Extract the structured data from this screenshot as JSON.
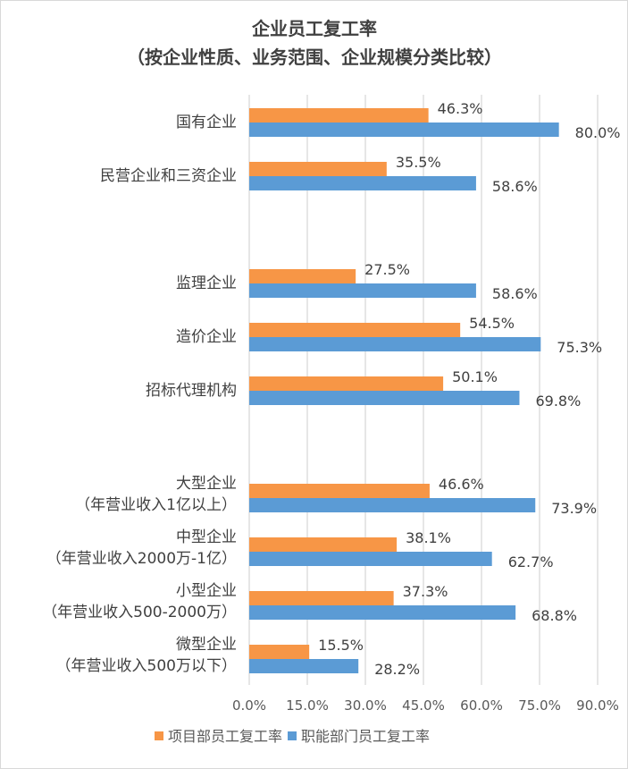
{
  "chart_data": {
    "type": "bar",
    "orientation": "horizontal",
    "title": [
      "企业员工复工率",
      "（按企业性质、业务范围、企业规模分类比较）"
    ],
    "categories": [
      [
        "国有企业"
      ],
      [
        "民营企业和三资企业"
      ],
      [],
      [
        "监理企业"
      ],
      [
        "造价企业"
      ],
      [
        "招标代理机构"
      ],
      [],
      [
        "大型企业",
        "（年营业收入1亿以上）"
      ],
      [
        "中型企业",
        "（年营业收入2000万-1亿）"
      ],
      [
        "小型企业",
        "（年营业收入500-2000万）"
      ],
      [
        "微型企业",
        "（年营业收入500万以下）"
      ]
    ],
    "series": [
      {
        "name": "项目部员工复工率",
        "color": "#F79646",
        "values": [
          46.3,
          35.5,
          null,
          27.5,
          54.5,
          50.1,
          null,
          46.6,
          38.1,
          37.3,
          15.5
        ]
      },
      {
        "name": "职能部门员工复工率",
        "color": "#5B9BD5",
        "values": [
          80.0,
          58.6,
          null,
          58.6,
          75.3,
          69.8,
          null,
          73.9,
          62.7,
          68.8,
          28.2
        ]
      }
    ],
    "xlim": [
      0,
      90
    ],
    "xticks": [
      "0.0%",
      "15.0%",
      "30.0%",
      "45.0%",
      "60.0%",
      "75.0%",
      "90.0%"
    ],
    "grid": true,
    "legend": "bottom"
  }
}
